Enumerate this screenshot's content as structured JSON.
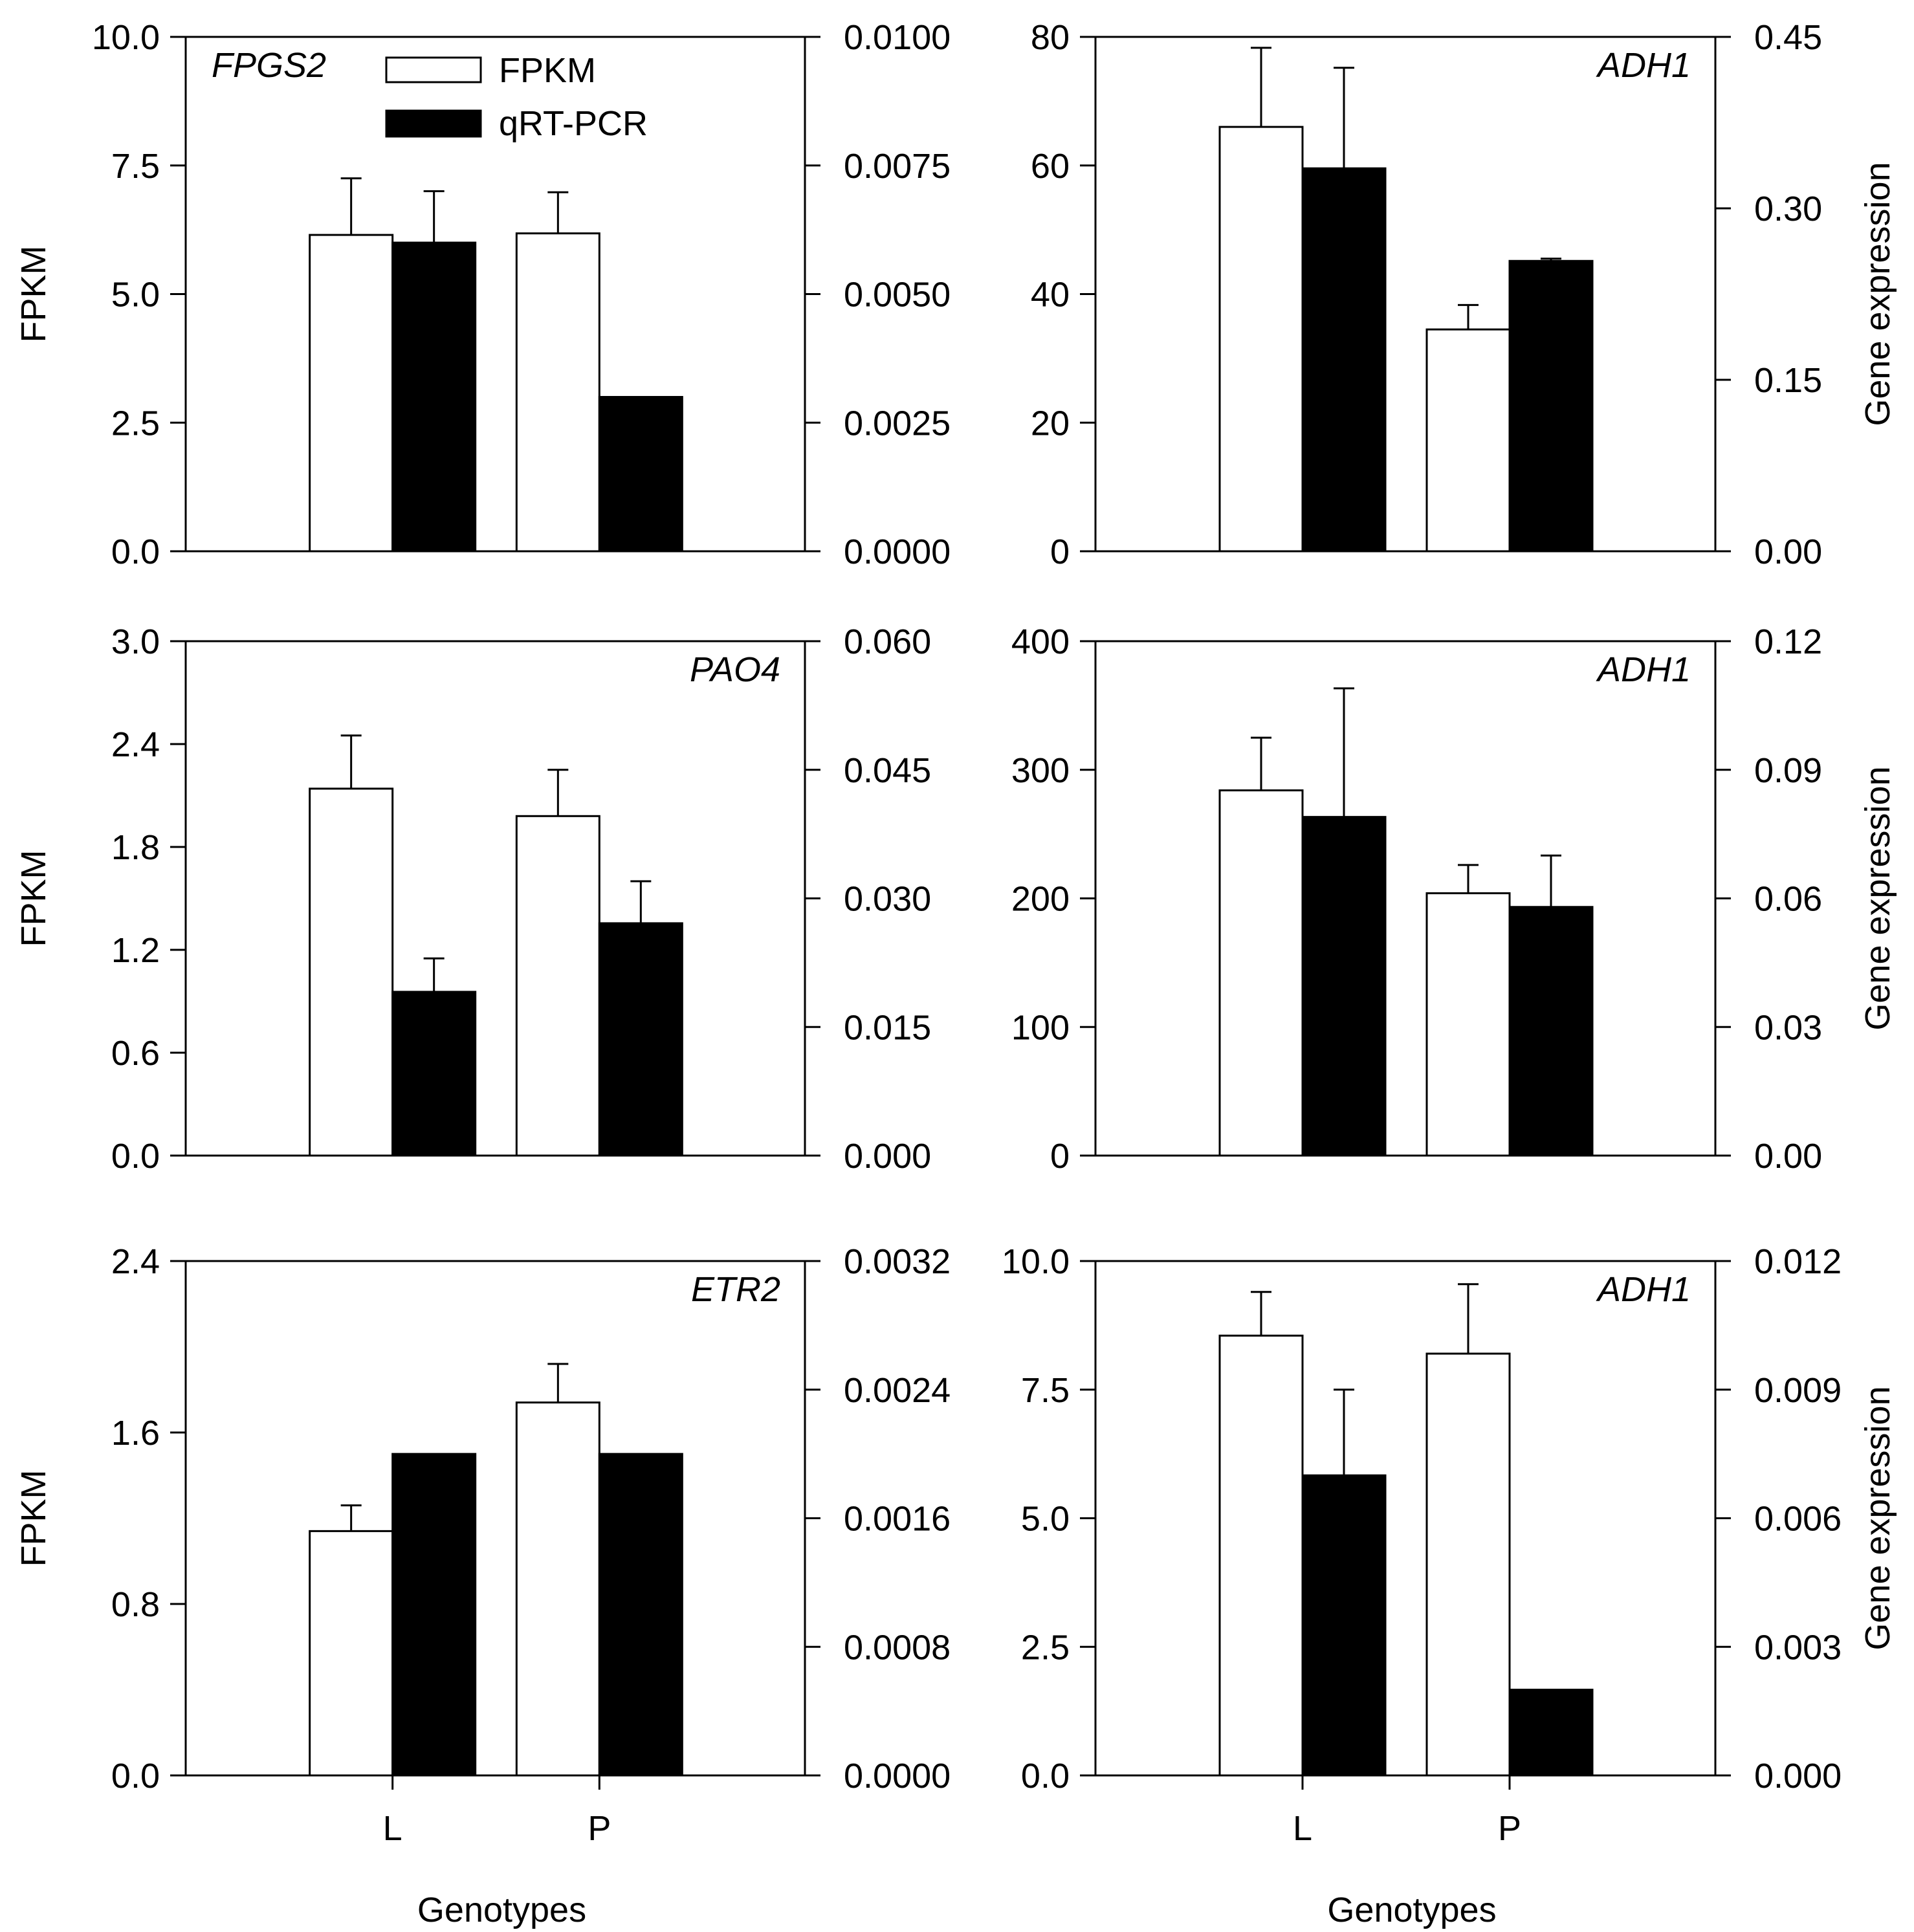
{
  "figure": {
    "legend": {
      "series1_label": "FPKM",
      "series2_label": "qRT-PCR"
    },
    "colors": {
      "fpkm_fill": "#ffffff",
      "qrt_fill": "#000000",
      "stroke": "#000000"
    },
    "categories": [
      "L",
      "P"
    ],
    "xlabel": "Genotypes",
    "ylabel_left": "FPKM",
    "ylabel_right": "Gene expression"
  },
  "chart_data": [
    {
      "type": "bar",
      "gene": "FPGS2",
      "show_legend": true,
      "categories": [
        "L",
        "P"
      ],
      "left_axis": {
        "label": "FPKM",
        "range": [
          0,
          10
        ],
        "ticks": [
          "0.0",
          "2.5",
          "5.0",
          "7.5",
          "10.0"
        ]
      },
      "right_axis": {
        "label": "",
        "range": [
          0,
          0.01
        ],
        "ticks": [
          "0.0000",
          "0.0025",
          "0.0050",
          "0.0075",
          "0.0100"
        ]
      },
      "series": [
        {
          "name": "FPKM",
          "axis": "left",
          "values": [
            6.15,
            6.18
          ],
          "errors": [
            1.1,
            0.8
          ]
        },
        {
          "name": "qRT-PCR",
          "axis": "right",
          "values": [
            0.006,
            0.003
          ],
          "errors": [
            0.001,
            0
          ]
        }
      ],
      "xlabel": "",
      "show_xticks": false
    },
    {
      "type": "bar",
      "gene": "ADH1",
      "show_legend": false,
      "categories": [
        "L",
        "P"
      ],
      "left_axis": {
        "label": "",
        "range": [
          0,
          80
        ],
        "ticks": [
          "0",
          "20",
          "40",
          "60",
          "80"
        ]
      },
      "right_axis": {
        "label": "Gene expression",
        "range": [
          0,
          0.45
        ],
        "ticks": [
          "0.00",
          "0.15",
          "0.30",
          "0.45"
        ]
      },
      "series": [
        {
          "name": "FPKM",
          "axis": "left",
          "values": [
            66,
            34.5
          ],
          "errors": [
            12.3,
            3.8
          ]
        },
        {
          "name": "qRT-PCR",
          "axis": "right",
          "values": [
            0.335,
            0.254
          ],
          "errors": [
            0.088,
            0.002
          ]
        }
      ],
      "xlabel": "",
      "show_xticks": false
    },
    {
      "type": "bar",
      "gene": "PAO4",
      "show_legend": false,
      "categories": [
        "L",
        "P"
      ],
      "left_axis": {
        "label": "FPKM",
        "range": [
          0,
          3
        ],
        "ticks": [
          "0.0",
          "0.6",
          "1.2",
          "1.8",
          "2.4",
          "3.0"
        ]
      },
      "right_axis": {
        "label": "",
        "range": [
          0,
          0.06
        ],
        "ticks": [
          "0.000",
          "0.015",
          "0.030",
          "0.045",
          "0.060"
        ]
      },
      "series": [
        {
          "name": "FPKM",
          "axis": "left",
          "values": [
            2.14,
            1.98
          ],
          "errors": [
            0.31,
            0.27
          ]
        },
        {
          "name": "qRT-PCR",
          "axis": "right",
          "values": [
            0.0191,
            0.0271
          ],
          "errors": [
            0.0039,
            0.0049
          ]
        }
      ],
      "xlabel": "",
      "show_xticks": false
    },
    {
      "type": "bar",
      "gene": "ADH1",
      "show_legend": false,
      "categories": [
        "L",
        "P"
      ],
      "left_axis": {
        "label": "",
        "range": [
          0,
          400
        ],
        "ticks": [
          "0",
          "100",
          "200",
          "300",
          "400"
        ]
      },
      "right_axis": {
        "label": "Gene expression",
        "range": [
          0,
          0.12
        ],
        "ticks": [
          "0.00",
          "0.03",
          "0.06",
          "0.09",
          "0.12"
        ]
      },
      "series": [
        {
          "name": "FPKM",
          "axis": "left",
          "values": [
            284,
            204
          ],
          "errors": [
            41,
            22
          ]
        },
        {
          "name": "qRT-PCR",
          "axis": "right",
          "values": [
            0.079,
            0.058
          ],
          "errors": [
            0.03,
            0.012
          ]
        }
      ],
      "xlabel": "",
      "show_xticks": false
    },
    {
      "type": "bar",
      "gene": "ETR2",
      "show_legend": false,
      "categories": [
        "L",
        "P"
      ],
      "left_axis": {
        "label": "FPKM",
        "range": [
          0,
          2.4
        ],
        "ticks": [
          "0.0",
          "0.8",
          "1.6",
          "2.4"
        ]
      },
      "right_axis": {
        "label": "",
        "range": [
          0,
          0.0032
        ],
        "ticks": [
          "0.0000",
          "0.0008",
          "0.0016",
          "0.0024",
          "0.0032"
        ]
      },
      "series": [
        {
          "name": "FPKM",
          "axis": "left",
          "values": [
            1.14,
            1.74
          ],
          "errors": [
            0.12,
            0.18
          ]
        },
        {
          "name": "qRT-PCR",
          "axis": "right",
          "values": [
            0.002,
            0.002
          ],
          "errors": [
            0,
            0
          ]
        }
      ],
      "xlabel": "Genotypes",
      "show_xticks": true
    },
    {
      "type": "bar",
      "gene": "ADH1",
      "show_legend": false,
      "categories": [
        "L",
        "P"
      ],
      "left_axis": {
        "label": "",
        "range": [
          0,
          10
        ],
        "ticks": [
          "0.0",
          "2.5",
          "5.0",
          "7.5",
          "10.0"
        ]
      },
      "right_axis": {
        "label": "Gene expression",
        "range": [
          0,
          0.012
        ],
        "ticks": [
          "0.000",
          "0.003",
          "0.006",
          "0.009",
          "0.012"
        ]
      },
      "series": [
        {
          "name": "FPKM",
          "axis": "left",
          "values": [
            8.55,
            8.2
          ],
          "errors": [
            0.85,
            1.35
          ]
        },
        {
          "name": "qRT-PCR",
          "axis": "right",
          "values": [
            0.007,
            0.002
          ],
          "errors": [
            0.002,
            0
          ]
        }
      ],
      "xlabel": "Genotypes",
      "show_xticks": true
    }
  ]
}
